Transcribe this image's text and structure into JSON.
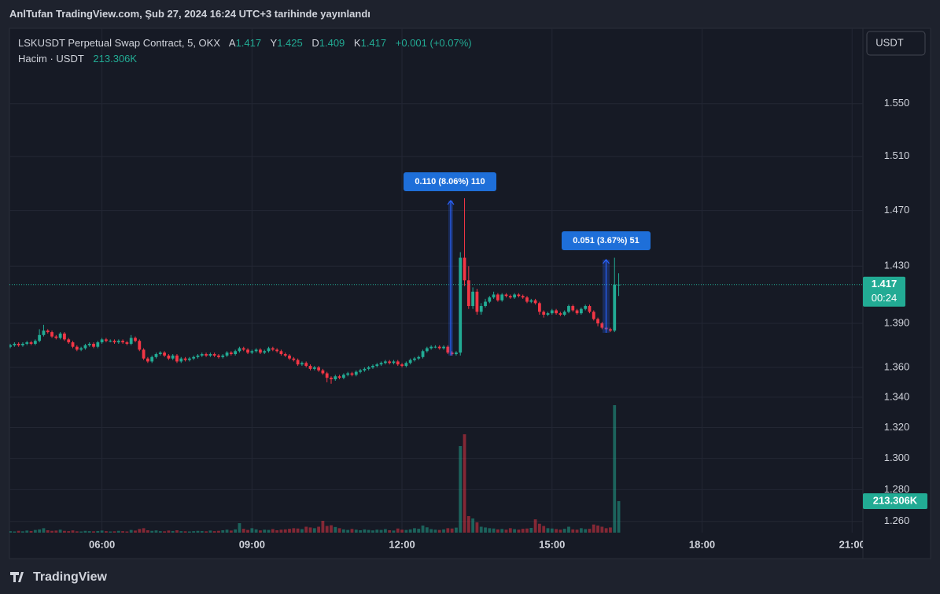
{
  "header": {
    "title": "AnlTufan TradingView.com, Şub 27, 2024 16:24 UTC+3 tarihinde yayınlandı"
  },
  "chart_data": {
    "type": "candlestick",
    "symbol": "LSKUSDT Perpetual Swap Contract, 5, OKX",
    "ohlc_letters": [
      "A",
      "Y",
      "D",
      "K"
    ],
    "change": "+0.001 (+0.07%)",
    "volume_title": "Hacim · USDT",
    "volume_label": "213.306K",
    "currency_button": "USDT",
    "countdown": "00:24",
    "annotations": [
      "0.110 (8.06%) 110",
      "0.051 (3.67%) 51"
    ],
    "up_color": "#22ab94",
    "down_color": "#f23645",
    "log_scale": true,
    "grid": true,
    "xlim": [
      "04:09",
      "21:13"
    ],
    "xticks": [
      "06:00",
      "09:00",
      "12:00",
      "15:00",
      "18:00",
      "21:00"
    ],
    "ylim": [
      1.253,
      1.609
    ],
    "yticks": [
      {
        "value": 1.26,
        "label": "1.260"
      },
      {
        "value": 1.28,
        "label": "1.280"
      },
      {
        "value": 1.3,
        "label": "1.300"
      },
      {
        "value": 1.32,
        "label": "1.320"
      },
      {
        "value": 1.34,
        "label": "1.340"
      },
      {
        "value": 1.36,
        "label": "1.360"
      },
      {
        "value": 1.39,
        "label": "1.390"
      },
      {
        "value": 1.43,
        "label": "1.430"
      },
      {
        "value": 1.47,
        "label": "1.470"
      },
      {
        "value": 1.51,
        "label": "1.510"
      },
      {
        "value": 1.55,
        "label": "1.550"
      }
    ],
    "x": [
      "04:10",
      "04:15",
      "04:20",
      "04:25",
      "04:30",
      "04:35",
      "04:40",
      "04:45",
      "04:50",
      "04:55",
      "05:00",
      "05:05",
      "05:10",
      "05:15",
      "05:20",
      "05:25",
      "05:30",
      "05:35",
      "05:40",
      "05:45",
      "05:50",
      "05:55",
      "06:00",
      "06:05",
      "06:10",
      "06:15",
      "06:20",
      "06:25",
      "06:30",
      "06:35",
      "06:40",
      "06:45",
      "06:50",
      "06:55",
      "07:00",
      "07:05",
      "07:10",
      "07:15",
      "07:20",
      "07:25",
      "07:30",
      "07:35",
      "07:40",
      "07:45",
      "07:50",
      "07:55",
      "08:00",
      "08:05",
      "08:10",
      "08:15",
      "08:20",
      "08:25",
      "08:30",
      "08:35",
      "08:40",
      "08:45",
      "08:50",
      "08:55",
      "09:00",
      "09:05",
      "09:10",
      "09:15",
      "09:20",
      "09:25",
      "09:30",
      "09:35",
      "09:40",
      "09:45",
      "09:50",
      "09:55",
      "10:00",
      "10:05",
      "10:10",
      "10:15",
      "10:20",
      "10:25",
      "10:30",
      "10:35",
      "10:40",
      "10:45",
      "10:50",
      "10:55",
      "11:00",
      "11:05",
      "11:10",
      "11:15",
      "11:20",
      "11:25",
      "11:30",
      "11:35",
      "11:40",
      "11:45",
      "11:50",
      "11:55",
      "12:00",
      "12:05",
      "12:10",
      "12:15",
      "12:20",
      "12:25",
      "12:30",
      "12:35",
      "12:40",
      "12:45",
      "12:50",
      "12:55",
      "13:00",
      "13:05",
      "13:10",
      "13:15",
      "13:20",
      "13:25",
      "13:30",
      "13:35",
      "13:40",
      "13:45",
      "13:50",
      "13:55",
      "14:00",
      "14:05",
      "14:10",
      "14:15",
      "14:20",
      "14:25",
      "14:30",
      "14:35",
      "14:40",
      "14:45",
      "14:50",
      "14:55",
      "15:00",
      "15:05",
      "15:10",
      "15:15",
      "15:20",
      "15:25",
      "15:30",
      "15:35",
      "15:40",
      "15:45",
      "15:50",
      "15:55",
      "16:00",
      "16:05",
      "16:10",
      "16:15",
      "16:20"
    ],
    "open": [
      1.374,
      1.375,
      1.376,
      1.375,
      1.376,
      1.377,
      1.376,
      1.378,
      1.382,
      1.385,
      1.384,
      1.381,
      1.38,
      1.383,
      1.379,
      1.377,
      1.374,
      1.372,
      1.373,
      1.375,
      1.376,
      1.374,
      1.377,
      1.379,
      1.378,
      1.378,
      1.377,
      1.378,
      1.377,
      1.376,
      1.38,
      1.378,
      1.372,
      1.366,
      1.364,
      1.367,
      1.369,
      1.37,
      1.368,
      1.366,
      1.368,
      1.364,
      1.366,
      1.365,
      1.366,
      1.367,
      1.368,
      1.369,
      1.368,
      1.369,
      1.368,
      1.367,
      1.368,
      1.37,
      1.369,
      1.371,
      1.373,
      1.372,
      1.37,
      1.371,
      1.372,
      1.37,
      1.371,
      1.373,
      1.372,
      1.371,
      1.369,
      1.368,
      1.366,
      1.365,
      1.362,
      1.363,
      1.361,
      1.359,
      1.36,
      1.358,
      1.356,
      1.353,
      1.352,
      1.354,
      1.353,
      1.355,
      1.356,
      1.355,
      1.357,
      1.358,
      1.359,
      1.36,
      1.361,
      1.362,
      1.363,
      1.364,
      1.363,
      1.364,
      1.362,
      1.361,
      1.363,
      1.365,
      1.366,
      1.367,
      1.371,
      1.373,
      1.374,
      1.374,
      1.373,
      1.374,
      1.37,
      1.369,
      1.37,
      1.436,
      1.42,
      1.402,
      1.412,
      1.398,
      1.402,
      1.405,
      1.408,
      1.41,
      1.406,
      1.41,
      1.409,
      1.408,
      1.41,
      1.409,
      1.408,
      1.405,
      1.406,
      1.404,
      1.398,
      1.396,
      1.397,
      1.399,
      1.397,
      1.396,
      1.398,
      1.402,
      1.399,
      1.397,
      1.4,
      1.402,
      1.398,
      1.393,
      1.39,
      1.387,
      1.386,
      1.385,
      1.417
    ],
    "high": [
      1.376,
      1.377,
      1.377,
      1.377,
      1.378,
      1.378,
      1.379,
      1.386,
      1.389,
      1.386,
      1.385,
      1.382,
      1.384,
      1.384,
      1.38,
      1.378,
      1.375,
      1.374,
      1.376,
      1.377,
      1.377,
      1.378,
      1.38,
      1.38,
      1.379,
      1.379,
      1.379,
      1.379,
      1.378,
      1.382,
      1.381,
      1.379,
      1.373,
      1.367,
      1.368,
      1.37,
      1.371,
      1.371,
      1.369,
      1.369,
      1.369,
      1.367,
      1.367,
      1.367,
      1.368,
      1.369,
      1.37,
      1.37,
      1.37,
      1.37,
      1.369,
      1.369,
      1.371,
      1.371,
      1.372,
      1.374,
      1.374,
      1.373,
      1.372,
      1.373,
      1.373,
      1.372,
      1.374,
      1.374,
      1.373,
      1.372,
      1.37,
      1.369,
      1.367,
      1.366,
      1.364,
      1.364,
      1.362,
      1.361,
      1.361,
      1.359,
      1.357,
      1.354,
      1.355,
      1.355,
      1.356,
      1.357,
      1.357,
      1.358,
      1.359,
      1.36,
      1.361,
      1.362,
      1.363,
      1.364,
      1.365,
      1.365,
      1.365,
      1.365,
      1.363,
      1.364,
      1.366,
      1.367,
      1.368,
      1.372,
      1.374,
      1.375,
      1.375,
      1.375,
      1.375,
      1.375,
      1.371,
      1.371,
      1.44,
      1.479,
      1.43,
      1.415,
      1.414,
      1.404,
      1.407,
      1.409,
      1.412,
      1.411,
      1.411,
      1.411,
      1.41,
      1.411,
      1.411,
      1.41,
      1.409,
      1.407,
      1.407,
      1.405,
      1.399,
      1.398,
      1.4,
      1.4,
      1.398,
      1.399,
      1.403,
      1.403,
      1.4,
      1.401,
      1.403,
      1.403,
      1.399,
      1.394,
      1.391,
      1.388,
      1.387,
      1.436,
      1.425
    ],
    "low": [
      1.373,
      1.374,
      1.374,
      1.374,
      1.375,
      1.375,
      1.375,
      1.377,
      1.381,
      1.383,
      1.38,
      1.379,
      1.379,
      1.378,
      1.376,
      1.373,
      1.371,
      1.371,
      1.372,
      1.374,
      1.373,
      1.373,
      1.376,
      1.377,
      1.377,
      1.376,
      1.376,
      1.376,
      1.375,
      1.375,
      1.377,
      1.371,
      1.365,
      1.363,
      1.363,
      1.366,
      1.368,
      1.367,
      1.365,
      1.365,
      1.363,
      1.363,
      1.364,
      1.364,
      1.365,
      1.366,
      1.367,
      1.367,
      1.367,
      1.367,
      1.366,
      1.366,
      1.367,
      1.368,
      1.368,
      1.37,
      1.371,
      1.369,
      1.369,
      1.37,
      1.369,
      1.369,
      1.37,
      1.371,
      1.37,
      1.368,
      1.367,
      1.365,
      1.364,
      1.361,
      1.361,
      1.36,
      1.358,
      1.358,
      1.357,
      1.355,
      1.35,
      1.349,
      1.351,
      1.352,
      1.352,
      1.354,
      1.354,
      1.354,
      1.356,
      1.357,
      1.358,
      1.359,
      1.36,
      1.361,
      1.362,
      1.362,
      1.362,
      1.361,
      1.36,
      1.36,
      1.362,
      1.364,
      1.365,
      1.366,
      1.37,
      1.372,
      1.373,
      1.372,
      1.372,
      1.369,
      1.368,
      1.368,
      1.368,
      1.416,
      1.4,
      1.4,
      1.396,
      1.396,
      1.401,
      1.404,
      1.407,
      1.405,
      1.405,
      1.408,
      1.407,
      1.407,
      1.408,
      1.407,
      1.404,
      1.404,
      1.403,
      1.396,
      1.394,
      1.395,
      1.396,
      1.396,
      1.395,
      1.395,
      1.397,
      1.398,
      1.396,
      1.396,
      1.399,
      1.397,
      1.392,
      1.388,
      1.386,
      1.385,
      1.384,
      1.384,
      1.409
    ],
    "close": [
      1.375,
      1.376,
      1.375,
      1.376,
      1.377,
      1.376,
      1.378,
      1.382,
      1.385,
      1.384,
      1.381,
      1.38,
      1.383,
      1.379,
      1.377,
      1.374,
      1.372,
      1.373,
      1.375,
      1.376,
      1.374,
      1.377,
      1.379,
      1.378,
      1.378,
      1.377,
      1.378,
      1.377,
      1.376,
      1.38,
      1.378,
      1.372,
      1.366,
      1.364,
      1.367,
      1.369,
      1.37,
      1.368,
      1.366,
      1.368,
      1.364,
      1.366,
      1.365,
      1.366,
      1.367,
      1.368,
      1.369,
      1.368,
      1.369,
      1.368,
      1.367,
      1.368,
      1.37,
      1.369,
      1.371,
      1.373,
      1.372,
      1.37,
      1.371,
      1.372,
      1.37,
      1.371,
      1.373,
      1.372,
      1.371,
      1.369,
      1.368,
      1.366,
      1.365,
      1.362,
      1.363,
      1.361,
      1.359,
      1.36,
      1.358,
      1.356,
      1.353,
      1.352,
      1.354,
      1.353,
      1.355,
      1.356,
      1.355,
      1.357,
      1.358,
      1.359,
      1.36,
      1.361,
      1.362,
      1.363,
      1.364,
      1.363,
      1.364,
      1.362,
      1.361,
      1.363,
      1.365,
      1.366,
      1.367,
      1.371,
      1.373,
      1.374,
      1.374,
      1.373,
      1.374,
      1.37,
      1.369,
      1.37,
      1.436,
      1.42,
      1.402,
      1.412,
      1.398,
      1.402,
      1.405,
      1.408,
      1.41,
      1.406,
      1.41,
      1.409,
      1.408,
      1.41,
      1.409,
      1.408,
      1.405,
      1.406,
      1.404,
      1.398,
      1.396,
      1.397,
      1.399,
      1.397,
      1.396,
      1.398,
      1.402,
      1.399,
      1.397,
      1.4,
      1.402,
      1.398,
      1.393,
      1.39,
      1.387,
      1.386,
      1.385,
      1.417,
      1.417
    ],
    "volume": [
      10,
      8,
      12,
      9,
      14,
      11,
      18,
      22,
      30,
      16,
      12,
      14,
      20,
      12,
      10,
      15,
      9,
      8,
      12,
      10,
      9,
      11,
      14,
      10,
      8,
      9,
      12,
      10,
      8,
      18,
      14,
      25,
      30,
      16,
      12,
      15,
      10,
      9,
      14,
      11,
      16,
      10,
      9,
      8,
      10,
      12,
      11,
      9,
      14,
      10,
      12,
      16,
      20,
      14,
      22,
      64,
      26,
      18,
      30,
      22,
      15,
      20,
      18,
      24,
      16,
      20,
      22,
      26,
      30,
      28,
      24,
      40,
      35,
      30,
      40,
      80,
      45,
      50,
      38,
      30,
      22,
      18,
      25,
      20,
      16,
      22,
      18,
      15,
      20,
      18,
      24,
      16,
      14,
      28,
      20,
      18,
      22,
      30,
      26,
      48,
      36,
      24,
      20,
      18,
      22,
      30,
      28,
      34,
      586,
      666,
      112,
      96,
      70,
      40,
      35,
      30,
      28,
      22,
      25,
      20,
      30,
      24,
      20,
      26,
      28,
      32,
      90,
      60,
      45,
      30,
      28,
      24,
      20,
      26,
      40,
      22,
      20,
      30,
      24,
      26,
      55,
      48,
      40,
      30,
      35,
      863,
      213.306
    ]
  },
  "footer": {
    "brand": "TradingView"
  }
}
